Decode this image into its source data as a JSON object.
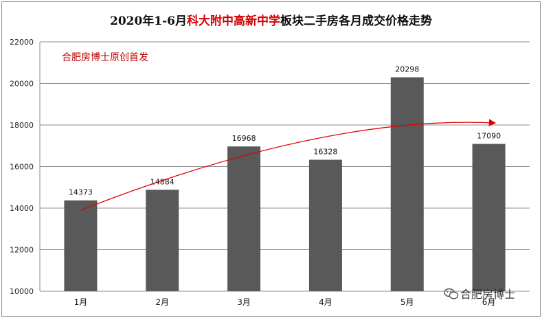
{
  "chart_data": {
    "type": "bar",
    "title_parts": [
      "2020年1-6月",
      "科大附中高新中学",
      "板块二手房各月成交价格走势"
    ],
    "categories": [
      "1月",
      "2月",
      "3月",
      "4月",
      "5月",
      "6月"
    ],
    "values": [
      14373,
      14884,
      16968,
      16328,
      20298,
      17090
    ],
    "data_labels": [
      "14373",
      "14884",
      "16968",
      "16328",
      "20298",
      "17090"
    ],
    "ylim": [
      10000,
      22000
    ],
    "yticks": [
      10000,
      12000,
      14000,
      16000,
      18000,
      20000,
      22000
    ],
    "ytick_labels": [
      "10000",
      "12000",
      "14000",
      "16000",
      "18000",
      "20000",
      "22000"
    ],
    "xlabel": "",
    "ylabel": "",
    "grid": true,
    "trend_arrow": "red curve rising from Jan to Jun",
    "annotation": "合肥房博士原创首发",
    "bar_color": "#595959",
    "trend_color": "#e00000"
  },
  "watermark": {
    "text": "合肥房博士",
    "icon": "wechat-icon"
  }
}
